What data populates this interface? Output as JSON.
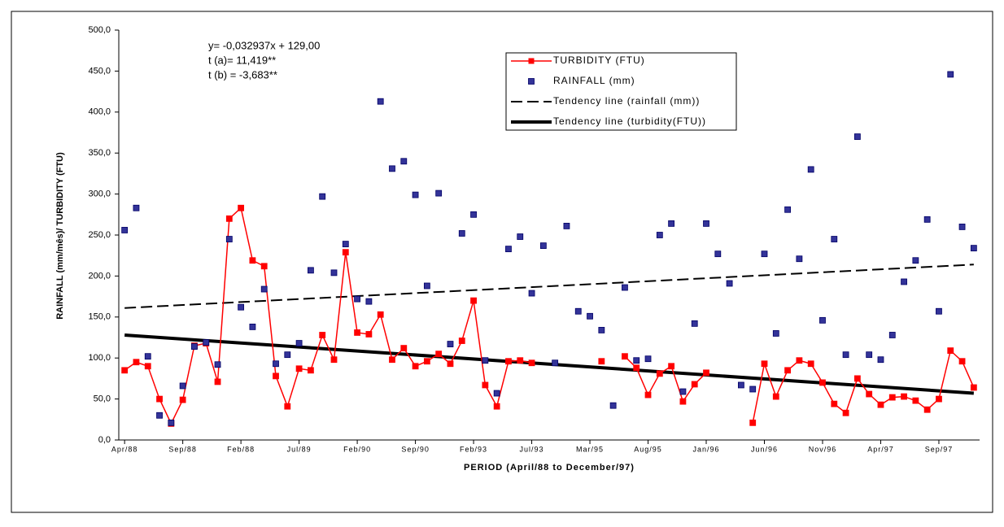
{
  "chart_data": {
    "type": "line",
    "annotations": [
      "y= -0,032937x + 129,00",
      "t (a)=  11,419**",
      "t (b) = -3,683**"
    ],
    "x_label": "PERIOD (April/88 to December/97)",
    "y_label": "RAINFALL (mm/mês)/ TURBIDITY (FTU)",
    "categories": [
      "Apr/88",
      null,
      null,
      null,
      null,
      "Sep/88",
      null,
      null,
      null,
      null,
      "Feb/88",
      null,
      null,
      null,
      null,
      "Jul/89",
      null,
      null,
      null,
      null,
      "Feb/90",
      null,
      null,
      null,
      null,
      "Sep/90",
      null,
      null,
      null,
      null,
      "Feb/93",
      null,
      null,
      null,
      null,
      "Jul/93",
      null,
      null,
      null,
      null,
      "Mar/95",
      null,
      null,
      null,
      null,
      "Aug/95",
      null,
      null,
      null,
      null,
      "Jan/96",
      null,
      null,
      null,
      null,
      "Jun/96",
      null,
      null,
      null,
      null,
      "Nov/96",
      null,
      null,
      null,
      null,
      "Apr/97",
      null,
      null,
      null,
      null,
      "Sep/97",
      null,
      null,
      null
    ],
    "series": [
      {
        "name": "TURBIDITY (FTU)",
        "color": "#ff0000",
        "style": "line-marker",
        "values": [
          85,
          95,
          90,
          50,
          20,
          49,
          115,
          118,
          71,
          270,
          283,
          219,
          212,
          78,
          41,
          87,
          85,
          128,
          98,
          229,
          131,
          129,
          153,
          98,
          112,
          90,
          96,
          105,
          93,
          121,
          170,
          67,
          41,
          96,
          97,
          94,
          null,
          null,
          null,
          null,
          null,
          96,
          null,
          102,
          88,
          55,
          81,
          90,
          47,
          68,
          82,
          null,
          null,
          null,
          21,
          93,
          53,
          85,
          97,
          93,
          70,
          44,
          33,
          75,
          56,
          43,
          52,
          53,
          48,
          37,
          50,
          109,
          96,
          64
        ]
      },
      {
        "name": "RAINFALL (mm)",
        "color": "#333399",
        "style": "marker",
        "values": [
          256,
          283,
          102,
          30,
          21,
          66,
          114,
          119,
          92,
          245,
          162,
          138,
          184,
          93,
          104,
          118,
          207,
          297,
          204,
          239,
          172,
          169,
          413,
          331,
          340,
          299,
          188,
          301,
          117,
          252,
          275,
          97,
          57,
          233,
          248,
          179,
          237,
          94,
          261,
          157,
          151,
          134,
          42,
          186,
          97,
          99,
          250,
          264,
          59,
          142,
          264,
          227,
          191,
          67,
          62,
          227,
          130,
          281,
          221,
          330,
          146,
          245,
          104,
          370,
          104,
          98,
          128,
          193,
          219,
          269,
          157,
          446,
          260,
          234
        ]
      }
    ],
    "trendlines": [
      {
        "name": "Tendency line (rainfall (mm))",
        "color": "#000000",
        "dashed": true,
        "width": 2,
        "values": [
          161,
          214
        ]
      },
      {
        "name": "Tendency line (turbidity(FTU))",
        "color": "#000000",
        "dashed": false,
        "width": 4,
        "values": [
          128,
          57
        ]
      }
    ],
    "ylim": [
      0,
      500
    ],
    "yticks": [
      {
        "value": 0,
        "label": "0,0"
      },
      {
        "value": 50,
        "label": "50,0"
      },
      {
        "value": 100,
        "label": "100,0"
      },
      {
        "value": 150,
        "label": "150,0"
      },
      {
        "value": 200,
        "label": "200,0"
      },
      {
        "value": 250,
        "label": "250,0"
      },
      {
        "value": 300,
        "label": "300,0"
      },
      {
        "value": 350,
        "label": "350,0"
      },
      {
        "value": 400,
        "label": "400,0"
      },
      {
        "value": 450,
        "label": "450,0"
      },
      {
        "value": 500,
        "label": "500,0"
      }
    ],
    "grid": false
  }
}
